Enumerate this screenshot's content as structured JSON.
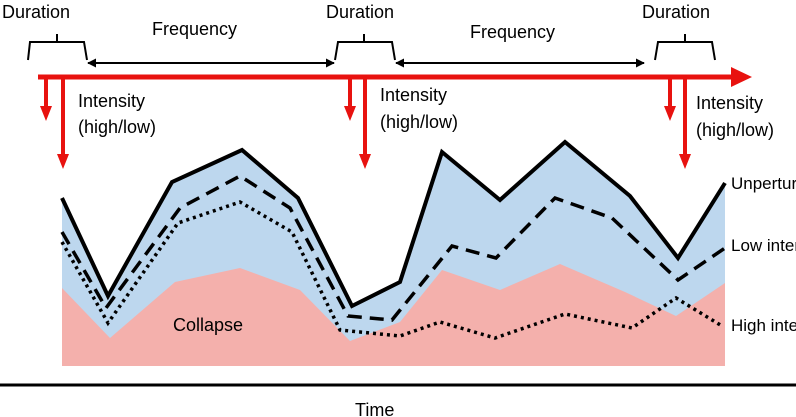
{
  "labels": {
    "duration": "Duration",
    "frequency": "Frequency",
    "intensity_line1": "Intensity",
    "intensity_line2": "(high/low)",
    "collapse": "Collapse",
    "time": "Time",
    "unperturbed": "Unperturbed",
    "low_intensity": "Low intensity",
    "high_intensity": "High intensity"
  },
  "colors": {
    "timeline": "#e8120f",
    "disturbance_arrow": "#e8120f",
    "region_fill": "#bdd7ee",
    "collapse_fill": "#f4b0ac",
    "curve": "#000000",
    "text": "#000000"
  }
}
